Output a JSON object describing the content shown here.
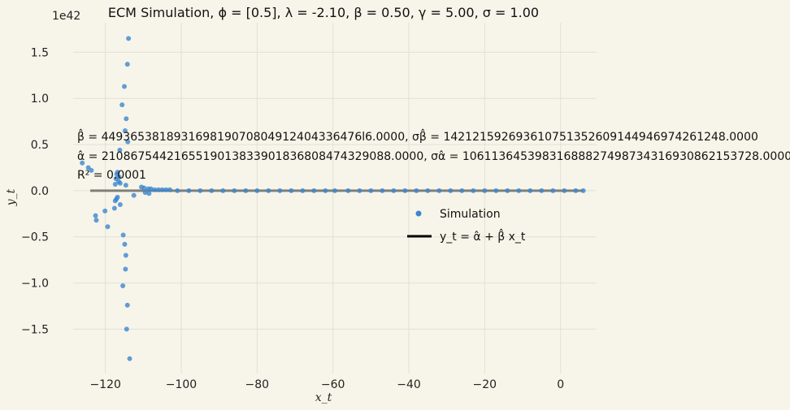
{
  "chart_data": {
    "type": "scatter",
    "title": "ECM Simulation, ϕ = [0.5], λ = -2.10, β = 0.50, γ = 5.00, σ = 1.00",
    "xlabel": "x_t",
    "ylabel": "y_t",
    "y_offset_label": "1e42",
    "xlim": [
      -128.5,
      9.5
    ],
    "ylim": [
      -1.98,
      1.82
    ],
    "x_ticks": [
      -120,
      -100,
      -80,
      -60,
      -40,
      -20,
      0
    ],
    "x_tick_labels": [
      "−120",
      "−100",
      "−80",
      "−60",
      "−40",
      "−20",
      "0"
    ],
    "y_ticks": [
      -1.5,
      -1.0,
      -0.5,
      0.0,
      0.5,
      1.0,
      1.5
    ],
    "y_tick_labels": [
      "−1.5",
      "−1.0",
      "−0.5",
      "0.0",
      "0.5",
      "1.0",
      "1.5"
    ],
    "grid": true,
    "legend_placement": "center-right",
    "colors": {
      "background": "#f7f5e9",
      "grid": "#e2e0d6",
      "points": "#3b86cf",
      "fit_line": "#000000",
      "fit_line_plot": "#7f7f77"
    },
    "annotations": {
      "beta_hat": "β̂ = 449365381893169819070804912404336476l6.0000, σβ̂ = 142121592693610751352609144946974261248.0000",
      "alpha_hat": "α̂ = 21086754421655190138339018368084743290 88.0000, σα̂ = 1061136453983168882749873431693086 2153728.0000",
      "r_squared": "R² = 0.0001"
    },
    "series": [
      {
        "name": "Simulation",
        "kind": "scatter",
        "points": [
          [
            -113.9,
            1.65
          ],
          [
            -114.2,
            1.37
          ],
          [
            -115.0,
            1.13
          ],
          [
            -115.6,
            0.93
          ],
          [
            -114.5,
            0.78
          ],
          [
            -114.8,
            0.65
          ],
          [
            -114.1,
            0.53
          ],
          [
            -116.2,
            0.44
          ],
          [
            -126.1,
            0.3
          ],
          [
            -124.5,
            0.25
          ],
          [
            -123.7,
            0.22
          ],
          [
            -116.8,
            0.2
          ],
          [
            -117.0,
            0.18
          ],
          [
            -116.4,
            0.15
          ],
          [
            -117.2,
            0.13
          ],
          [
            -116.5,
            0.1
          ],
          [
            -116.1,
            0.08
          ],
          [
            -117.4,
            0.07
          ],
          [
            -114.6,
            0.06
          ],
          [
            -110.5,
            0.04
          ],
          [
            -109.8,
            0.03
          ],
          [
            -108.7,
            0.02
          ],
          [
            -108.0,
            0.02
          ],
          [
            -107.0,
            0.01
          ],
          [
            -106.0,
            0.01
          ],
          [
            -105.0,
            0.01
          ],
          [
            -104.0,
            0.01
          ],
          [
            -103.0,
            0.01
          ],
          [
            -109.5,
            -0.02
          ],
          [
            -108.5,
            -0.03
          ],
          [
            -112.5,
            -0.05
          ],
          [
            -116.8,
            -0.07
          ],
          [
            -117.1,
            -0.09
          ],
          [
            -117.4,
            -0.11
          ],
          [
            -116.1,
            -0.15
          ],
          [
            -117.6,
            -0.19
          ],
          [
            -120.1,
            -0.22
          ],
          [
            -122.6,
            -0.27
          ],
          [
            -122.4,
            -0.32
          ],
          [
            -119.4,
            -0.39
          ],
          [
            -115.3,
            -0.48
          ],
          [
            -114.9,
            -0.58
          ],
          [
            -114.6,
            -0.7
          ],
          [
            -114.7,
            -0.85
          ],
          [
            -115.4,
            -1.03
          ],
          [
            -114.2,
            -1.24
          ],
          [
            -114.4,
            -1.5
          ],
          [
            -113.6,
            -1.82
          ],
          [
            -101.0,
            0.0
          ],
          [
            -98.0,
            0.0
          ],
          [
            -95.0,
            0.0
          ],
          [
            -92.0,
            0.0
          ],
          [
            -89.0,
            0.0
          ],
          [
            -86.0,
            0.0
          ],
          [
            -83.0,
            0.0
          ],
          [
            -80.0,
            0.0
          ],
          [
            -77.0,
            0.0
          ],
          [
            -74.0,
            0.0
          ],
          [
            -71.0,
            0.0
          ],
          [
            -68.0,
            0.0
          ],
          [
            -65.0,
            0.0
          ],
          [
            -62.0,
            0.0
          ],
          [
            -59.5,
            0.0
          ],
          [
            -56.0,
            0.0
          ],
          [
            -53.0,
            0.0
          ],
          [
            -50.0,
            0.0
          ],
          [
            -47.0,
            0.0
          ],
          [
            -44.0,
            0.0
          ],
          [
            -41.0,
            0.0
          ],
          [
            -38.0,
            0.0
          ],
          [
            -35.0,
            0.0
          ],
          [
            -32.0,
            0.0
          ],
          [
            -29.0,
            0.0
          ],
          [
            -26.0,
            0.0
          ],
          [
            -23.0,
            0.0
          ],
          [
            -20.0,
            0.0
          ],
          [
            -17.0,
            0.0
          ],
          [
            -14.0,
            0.0
          ],
          [
            -11.0,
            0.0
          ],
          [
            -8.0,
            0.0
          ],
          [
            -5.0,
            0.0
          ],
          [
            -2.0,
            0.0
          ],
          [
            1.0,
            0.0
          ],
          [
            4.0,
            0.0
          ],
          [
            6.0,
            0.0
          ]
        ]
      },
      {
        "name": "y_t = α̂ + β̂ x_t",
        "kind": "line",
        "x": [
          -124.0,
          6.0
        ],
        "y": [
          0.0,
          0.0
        ]
      }
    ]
  }
}
